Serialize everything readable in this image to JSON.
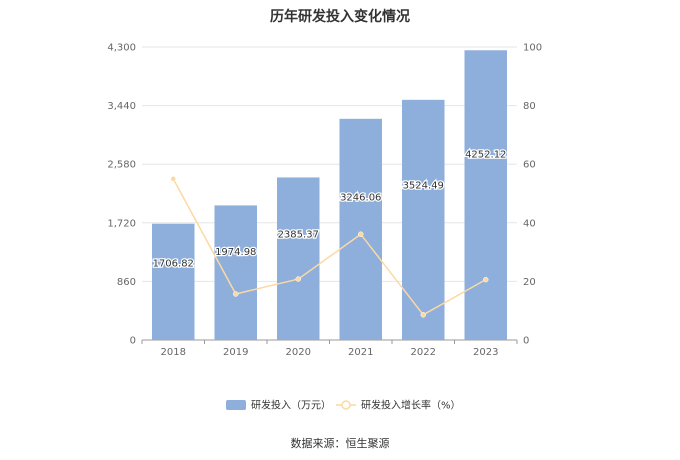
{
  "title": "历年研发投入变化情况",
  "source": "数据来源：恒生聚源",
  "colors": {
    "bar": "#8eaedb",
    "line": "#fcd9a2",
    "grid": "#e6e6e6",
    "axis": "#999999"
  },
  "chart_data": {
    "type": "bar+line",
    "title": "历年研发投入变化情况",
    "categories": [
      "2018",
      "2019",
      "2020",
      "2021",
      "2022",
      "2023"
    ],
    "series": [
      {
        "name": "研发投入（万元）",
        "type": "bar",
        "axis": "left",
        "values": [
          1706.82,
          1974.98,
          2385.37,
          3246.06,
          3524.49,
          4252.12
        ],
        "labels": [
          "1706.82",
          "1974.98",
          "2385.37",
          "3246.06",
          "3524.49",
          "4252.12"
        ]
      },
      {
        "name": "研发投入增长率（%）",
        "type": "line",
        "axis": "right",
        "values": [
          55.0,
          15.7,
          20.8,
          36.1,
          8.6,
          20.6
        ]
      }
    ],
    "y_left": {
      "ticks": [
        0,
        860,
        1720,
        2580,
        3440,
        4300
      ],
      "tick_labels": [
        "0",
        "860",
        "1,720",
        "2,580",
        "3,440",
        "4,300"
      ],
      "range": [
        0,
        4300
      ]
    },
    "y_right": {
      "ticks": [
        0,
        20,
        40,
        60,
        80,
        100
      ],
      "tick_labels": [
        "0",
        "20",
        "40",
        "60",
        "80",
        "100"
      ],
      "range": [
        0,
        100
      ]
    },
    "grid": true,
    "legend_position": "bottom"
  }
}
